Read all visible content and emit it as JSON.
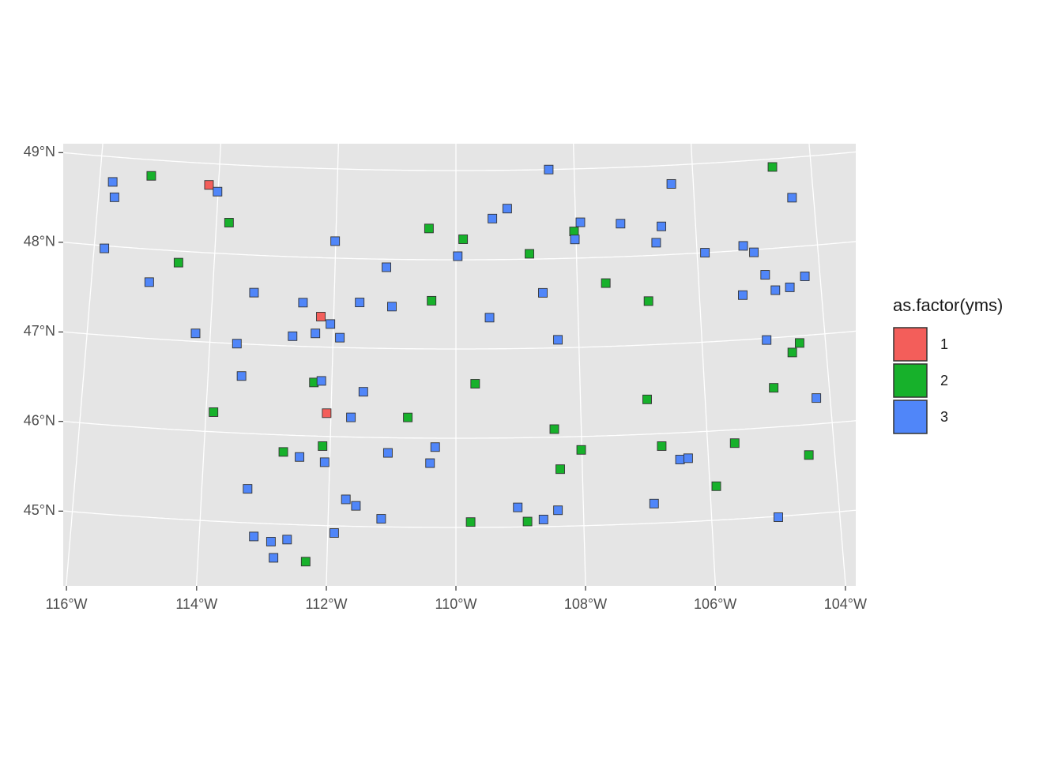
{
  "chart_data": {
    "type": "scatter",
    "legend_title": "as.factor(yms)",
    "legend": "right",
    "xticks": [
      {
        "value": -116,
        "label": "116°W"
      },
      {
        "value": -114,
        "label": "114°W"
      },
      {
        "value": -112,
        "label": "112°W"
      },
      {
        "value": -110,
        "label": "110°W"
      },
      {
        "value": -108,
        "label": "108°W"
      },
      {
        "value": -106,
        "label": "106°W"
      },
      {
        "value": -104,
        "label": "104°W"
      }
    ],
    "yticks": [
      {
        "value": 45,
        "label": "45°N"
      },
      {
        "value": 46,
        "label": "46°N"
      },
      {
        "value": 47,
        "label": "47°N"
      },
      {
        "value": 48,
        "label": "48°N"
      },
      {
        "value": 49,
        "label": "49°N"
      }
    ],
    "grid": true,
    "series": [
      {
        "name": "1",
        "color": "#F35E5A",
        "x": [
          -114.16,
          -112.21,
          -112.07
        ],
        "values": [
          48.76,
          47.34,
          46.26
        ]
      },
      {
        "name": "2",
        "color": "#17B12B",
        "x": [
          -115.14,
          -113.79,
          -114.59,
          -110.45,
          -109.88,
          -108.78,
          -108.03,
          -107.53,
          -106.84,
          -104.65,
          -110.4,
          -112.29,
          -109.69,
          -113.88,
          -110.77,
          -106.93,
          -104.89,
          -104.42,
          -104.55,
          -112.12,
          -112.74,
          -108.43,
          -108.01,
          -106.73,
          -105.57,
          -104.41,
          -108.35,
          -105.9,
          -109.77,
          -108.88,
          -112.33
        ],
        "values": [
          48.82,
          48.35,
          47.87,
          48.35,
          48.23,
          48.06,
          48.3,
          47.71,
          47.49,
          48.91,
          47.54,
          46.6,
          46.61,
          46.22,
          46.23,
          46.39,
          46.44,
          46.92,
          46.82,
          45.89,
          45.81,
          46.09,
          45.85,
          45.86,
          45.85,
          45.66,
          45.64,
          45.38,
          45.06,
          45.06,
          44.59
        ]
      },
      {
        "name": "3",
        "color": "#5086F9",
        "x": [
          -115.78,
          -115.73,
          -114.01,
          -115.83,
          -115.05,
          -112.01,
          -111.15,
          -113.32,
          -112.51,
          -111.58,
          -111.05,
          -114.24,
          -113.56,
          -112.66,
          -112.29,
          -112.05,
          -111.89,
          -113.46,
          -112.17,
          -111.49,
          -111.68,
          -108.43,
          -106.37,
          -109.14,
          -109.39,
          -107.92,
          -107.25,
          -106.57,
          -108.02,
          -109.97,
          -106.67,
          -105.87,
          -105.23,
          -105.06,
          -104.36,
          -104.9,
          -105.29,
          -104.75,
          -104.51,
          -104.25,
          -108.57,
          -109.45,
          -108.34,
          -104.95,
          -104.22,
          -110.33,
          -111.08,
          -112.48,
          -112.08,
          -110.41,
          -106.45,
          -106.32,
          -113.28,
          -111.73,
          -111.57,
          -109.03,
          -108.4,
          -106.89,
          -108.63,
          -111.17,
          -104.96,
          -111.9,
          -113.15,
          -112.88,
          -112.63,
          -112.83
        ],
        "values": [
          48.72,
          48.55,
          48.69,
          47.97,
          47.63,
          48.19,
          47.91,
          47.58,
          47.49,
          47.51,
          47.47,
          47.09,
          47.0,
          47.11,
          47.15,
          47.26,
          47.11,
          46.64,
          46.62,
          46.51,
          46.22,
          49.0,
          48.79,
          48.57,
          48.46,
          48.4,
          48.37,
          48.32,
          48.21,
          48.04,
          48.14,
          48.0,
          48.05,
          47.97,
          48.55,
          47.71,
          47.5,
          47.53,
          47.55,
          47.66,
          47.62,
          47.35,
          47.09,
          46.98,
          46.29,
          45.9,
          45.83,
          45.76,
          45.71,
          45.72,
          45.7,
          45.71,
          45.38,
          45.3,
          45.23,
          45.22,
          45.18,
          45.22,
          45.08,
          45.09,
          44.99,
          44.92,
          44.85,
          44.8,
          44.83,
          44.62
        ]
      }
    ]
  }
}
